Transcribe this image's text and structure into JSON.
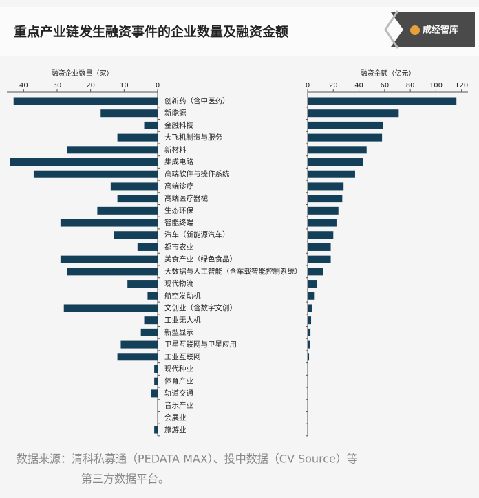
{
  "title": "重点产业链发生融资事件的企业数量及融资金额",
  "logo": "成经智库",
  "source": [
    "数据来源：清科私募通（PEDATA MAX）、投中数据（CV Source）等",
    "第三方数据平台。"
  ],
  "chart_data": [
    {
      "type": "bar",
      "orientation": "horizontal",
      "reversed": true,
      "color": "#143f59",
      "xlabel": "融资企业数量（家）",
      "categories": [
        "创新药（含中医药）",
        "新能源",
        "金融科技",
        "大飞机制造与服务",
        "新材料",
        "集成电路",
        "高端软件与操作系统",
        "高端诊疗",
        "高端医疗器械",
        "生态环保",
        "智能终端",
        "汽车（新能源汽车）",
        "都市农业",
        "美食产业（绿色食品）",
        "大数据与人工智能（含车载智能控制系统）",
        "现代物流",
        "航空发动机",
        "文创业（含数字文创）",
        "工业无人机",
        "新型显示",
        "卫星互联网与卫星应用",
        "工业互联网",
        "现代种业",
        "体育产业",
        "轨道交通",
        "音乐产业",
        "会展业",
        "旅游业"
      ],
      "values": [
        43,
        17,
        4,
        12,
        27,
        44,
        37,
        14,
        12,
        18,
        29,
        13,
        6,
        29,
        27,
        9,
        3,
        28,
        4,
        5,
        11,
        12,
        1,
        1,
        2,
        0,
        0,
        1
      ],
      "xlim": [
        0,
        45
      ],
      "xticks": [
        0,
        10,
        20,
        30,
        40
      ]
    },
    {
      "type": "bar",
      "orientation": "horizontal",
      "reversed": false,
      "color": "#143f59",
      "xlabel": "融资金额（亿元）",
      "values": [
        116,
        71,
        59,
        58,
        46,
        43,
        37,
        28,
        27,
        24,
        22.5,
        20,
        18,
        18,
        12,
        7.5,
        5,
        3.2,
        2.7,
        2.2,
        1.6,
        1.1,
        0.3,
        0.2,
        0.1,
        0.1,
        0,
        0
      ],
      "xlim": [
        0,
        125
      ],
      "xticks": [
        0,
        20,
        40,
        60,
        80,
        100,
        120
      ]
    }
  ]
}
